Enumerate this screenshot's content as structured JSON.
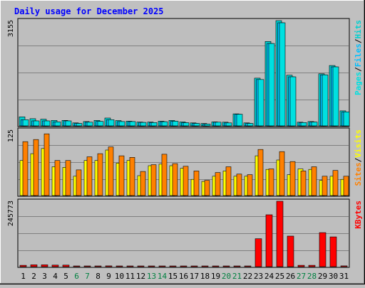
{
  "title": "Daily usage for December 2025",
  "colors": {
    "title": "#0000ff",
    "background": "#c0c0c0",
    "plot_background": "#bebebe",
    "gridline": "#808080",
    "hits": "#00d0d0",
    "files": "#00c0ff",
    "pages": "#00e0e0",
    "visits": "#ffff00",
    "sites": "#ff8000",
    "kbytes": "#ff0000",
    "weekend_label": "#008040",
    "weekday_label": "#000000"
  },
  "chart_data": [
    {
      "type": "bar",
      "name": "hits-files-pages",
      "categories": [
        "1",
        "2",
        "3",
        "4",
        "5",
        "6",
        "7",
        "8",
        "9",
        "10",
        "11",
        "12",
        "13",
        "14",
        "15",
        "16",
        "17",
        "18",
        "19",
        "20",
        "21",
        "22",
        "23",
        "24",
        "25",
        "26",
        "27",
        "28",
        "29",
        "30",
        "31"
      ],
      "weekend_days": [
        "6",
        "7",
        "13",
        "14",
        "20",
        "21",
        "27",
        "28"
      ],
      "ymax_label": "3155",
      "ylim": [
        0,
        3155
      ],
      "grid": true,
      "legend": [
        "Pages",
        "Files",
        "Hits"
      ],
      "series": [
        {
          "name": "Hits",
          "values": [
            270,
            215,
            200,
            165,
            165,
            90,
            130,
            165,
            235,
            160,
            140,
            115,
            115,
            140,
            165,
            120,
            90,
            70,
            120,
            110,
            360,
            90,
            1430,
            2530,
            3155,
            1520,
            110,
            130,
            1560,
            1810,
            450
          ]
        },
        {
          "name": "Files",
          "values": [
            185,
            150,
            150,
            120,
            150,
            75,
            110,
            135,
            185,
            130,
            130,
            105,
            100,
            125,
            140,
            95,
            75,
            55,
            110,
            90,
            350,
            75,
            1390,
            2470,
            3090,
            1470,
            100,
            115,
            1530,
            1770,
            420
          ]
        },
        {
          "name": "Pages",
          "values": [
            185,
            150,
            150,
            120,
            150,
            75,
            110,
            135,
            185,
            130,
            130,
            105,
            100,
            125,
            140,
            95,
            75,
            55,
            110,
            90,
            350,
            75,
            1390,
            2470,
            3090,
            1470,
            100,
            115,
            1530,
            1770,
            420
          ]
        }
      ]
    },
    {
      "type": "bar",
      "name": "visits-sites",
      "categories": [
        "1",
        "2",
        "3",
        "4",
        "5",
        "6",
        "7",
        "8",
        "9",
        "10",
        "11",
        "12",
        "13",
        "14",
        "15",
        "16",
        "17",
        "18",
        "19",
        "20",
        "21",
        "22",
        "23",
        "24",
        "25",
        "26",
        "27",
        "28",
        "29",
        "30",
        "31"
      ],
      "ymax_label": "125",
      "ylim": [
        0,
        125
      ],
      "grid": true,
      "legend": [
        "Sites",
        "Visits"
      ],
      "series": [
        {
          "name": "Visits",
          "values": [
            67,
            80,
            90,
            55,
            54,
            37,
            67,
            67,
            87,
            62,
            67,
            38,
            57,
            60,
            57,
            52,
            31,
            27,
            37,
            47,
            37,
            37,
            76,
            50,
            68,
            40,
            51,
            50,
            29,
            37,
            31
          ]
        },
        {
          "name": "Sites",
          "values": [
            103,
            107,
            118,
            67,
            67,
            49,
            74,
            80,
            93,
            76,
            73,
            46,
            59,
            79,
            61,
            56,
            47,
            29,
            44,
            55,
            41,
            40,
            88,
            51,
            84,
            65,
            47,
            55,
            37,
            48,
            37
          ]
        }
      ]
    },
    {
      "type": "bar",
      "name": "kbytes",
      "categories": [
        "1",
        "2",
        "3",
        "4",
        "5",
        "6",
        "7",
        "8",
        "9",
        "10",
        "11",
        "12",
        "13",
        "14",
        "15",
        "16",
        "17",
        "18",
        "19",
        "20",
        "21",
        "22",
        "23",
        "24",
        "25",
        "26",
        "27",
        "28",
        "29",
        "30",
        "31"
      ],
      "ymax_label": "245773",
      "ylim": [
        0,
        245773
      ],
      "grid": true,
      "legend": [
        "KBytes"
      ],
      "series": [
        {
          "name": "KBytes",
          "values": [
            5000,
            7000,
            7000,
            6000,
            6000,
            2500,
            2500,
            2500,
            3000,
            2500,
            2500,
            2500,
            2500,
            2500,
            2500,
            2500,
            2000,
            2000,
            2000,
            2000,
            2500,
            2000,
            105000,
            195000,
            245773,
            115000,
            5000,
            5000,
            128000,
            112000,
            3000
          ]
        }
      ]
    }
  ]
}
